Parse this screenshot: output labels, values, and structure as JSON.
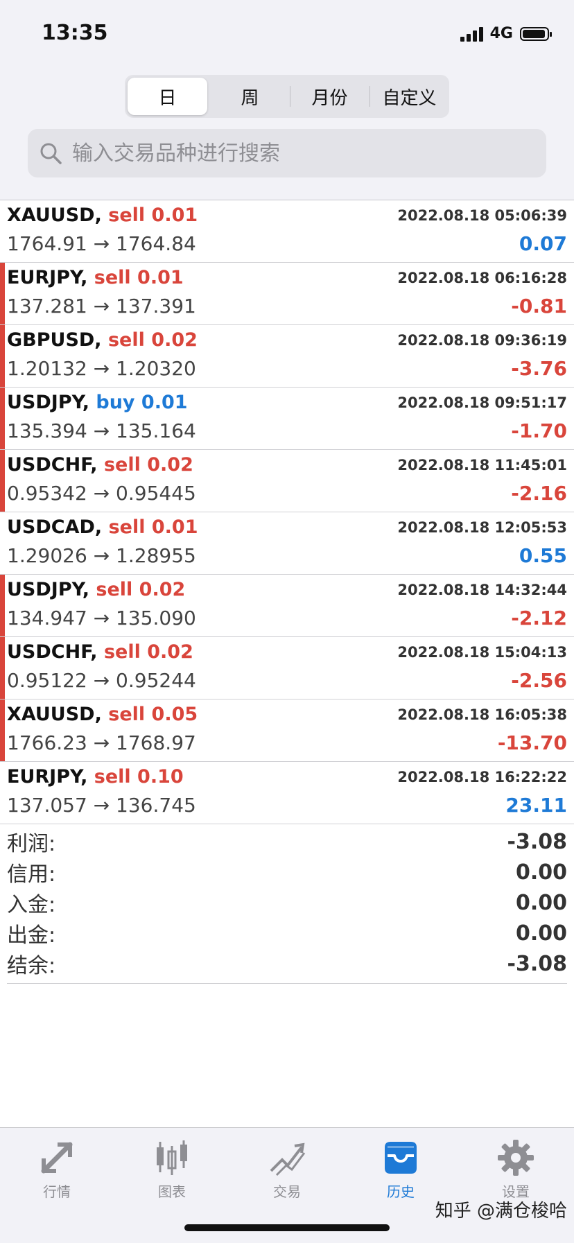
{
  "status": {
    "time": "13:35",
    "network": "4G"
  },
  "segments": [
    {
      "label": "日",
      "active": true
    },
    {
      "label": "周",
      "active": false
    },
    {
      "label": "月份",
      "active": false
    },
    {
      "label": "自定义",
      "active": false
    }
  ],
  "search": {
    "placeholder": "输入交易品种进行搜索"
  },
  "trades": [
    {
      "symbol": "XAUUSD,",
      "side": "sell 0.01",
      "time": "2022.08.18 05:06:39",
      "prices": "1764.91 → 1764.84",
      "profit": "0.07"
    },
    {
      "symbol": "EURJPY,",
      "side": "sell 0.01",
      "time": "2022.08.18 06:16:28",
      "prices": "137.281 → 137.391",
      "profit": "-0.81"
    },
    {
      "symbol": "GBPUSD,",
      "side": "sell 0.02",
      "time": "2022.08.18 09:36:19",
      "prices": "1.20132 → 1.20320",
      "profit": "-3.76"
    },
    {
      "symbol": "USDJPY,",
      "side": "buy 0.01",
      "time": "2022.08.18 09:51:17",
      "prices": "135.394 → 135.164",
      "profit": "-1.70"
    },
    {
      "symbol": "USDCHF,",
      "side": "sell 0.02",
      "time": "2022.08.18 11:45:01",
      "prices": "0.95342 → 0.95445",
      "profit": "-2.16"
    },
    {
      "symbol": "USDCAD,",
      "side": "sell 0.01",
      "time": "2022.08.18 12:05:53",
      "prices": "1.29026 → 1.28955",
      "profit": "0.55"
    },
    {
      "symbol": "USDJPY,",
      "side": "sell 0.02",
      "time": "2022.08.18 14:32:44",
      "prices": "134.947 → 135.090",
      "profit": "-2.12"
    },
    {
      "symbol": "USDCHF,",
      "side": "sell 0.02",
      "time": "2022.08.18 15:04:13",
      "prices": "0.95122 → 0.95244",
      "profit": "-2.56"
    },
    {
      "symbol": "XAUUSD,",
      "side": "sell 0.05",
      "time": "2022.08.18 16:05:38",
      "prices": "1766.23 → 1768.97",
      "profit": "-13.70"
    },
    {
      "symbol": "EURJPY,",
      "side": "sell 0.10",
      "time": "2022.08.18 16:22:22",
      "prices": "137.057 → 136.745",
      "profit": "23.11"
    }
  ],
  "summary": [
    {
      "label": "利润:",
      "value": "-3.08"
    },
    {
      "label": "信用:",
      "value": "0.00"
    },
    {
      "label": "入金:",
      "value": "0.00"
    },
    {
      "label": "出金:",
      "value": "0.00"
    },
    {
      "label": "结余:",
      "value": "-3.08"
    }
  ],
  "tabs": [
    {
      "label": "行情",
      "icon": "quotes-icon",
      "active": false
    },
    {
      "label": "图表",
      "icon": "chart-icon",
      "active": false
    },
    {
      "label": "交易",
      "icon": "trade-icon",
      "active": false
    },
    {
      "label": "历史",
      "icon": "history-icon",
      "active": true
    },
    {
      "label": "设置",
      "icon": "settings-icon",
      "active": false
    }
  ],
  "watermark": "知乎 @满仓梭哈",
  "colors": {
    "accent": "#1e7ad6",
    "loss": "#d9453b",
    "inactive": "#8e8e93"
  }
}
